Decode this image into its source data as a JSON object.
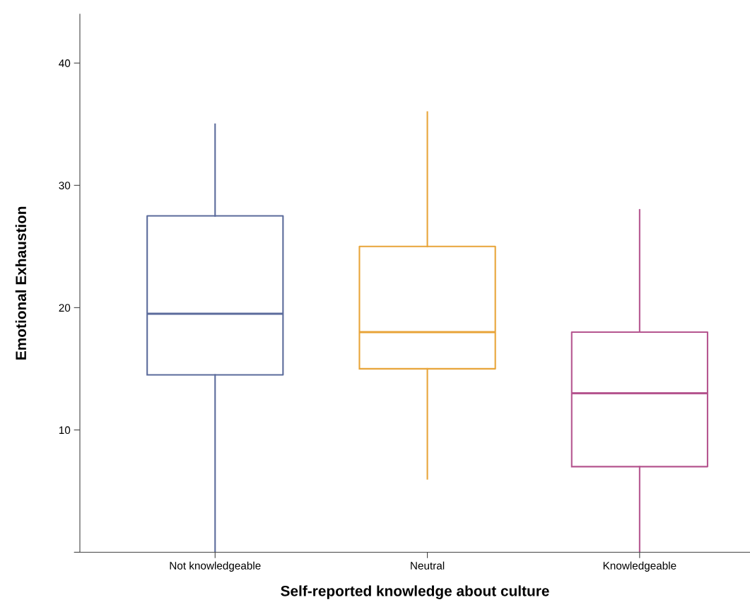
{
  "chart_data": {
    "type": "box",
    "xlabel": "Self-reported knowledge about culture",
    "ylabel": "Emotional Exhaustion",
    "categories": [
      "Not knowledgeable",
      "Neutral",
      "Knowledgeable"
    ],
    "colors": [
      "#5b6b9b",
      "#e8a438",
      "#b5558f"
    ],
    "boxes": [
      {
        "low": 0,
        "q1": 14.5,
        "median": 19.5,
        "q3": 27.5,
        "high": 35
      },
      {
        "low": 6,
        "q1": 15,
        "median": 18,
        "q3": 25,
        "high": 36
      },
      {
        "low": 0,
        "q1": 7,
        "median": 13,
        "q3": 18,
        "high": 28
      }
    ],
    "ylim": [
      0,
      44
    ],
    "yticks": [
      {
        "value": 0,
        "label": null
      },
      10,
      20,
      30,
      40
    ],
    "grid": false
  }
}
